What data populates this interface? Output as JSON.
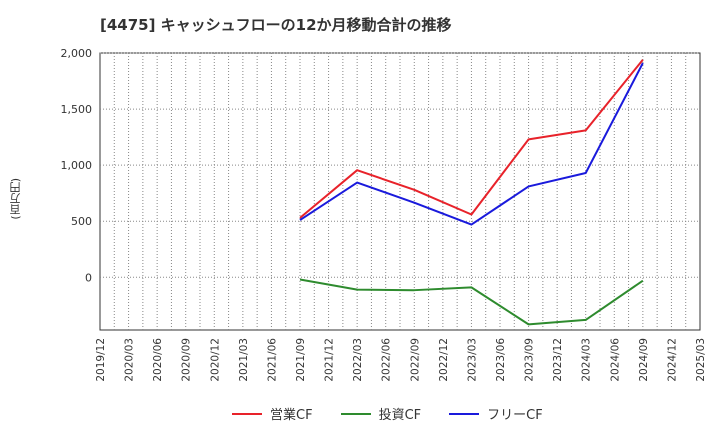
{
  "chart_data": {
    "type": "line",
    "title": "[4475]  キャッシュフローの12か月移動合計の推移",
    "ylabel": "(百万円)",
    "xlabel": "",
    "ylim": [
      -470,
      2000
    ],
    "yticks": [
      0,
      500,
      1000,
      1500,
      2000
    ],
    "ytick_labels": [
      "0",
      "500",
      "1,000",
      "1,500",
      "2,000"
    ],
    "categories": [
      "2019/12",
      "2020/03",
      "2020/06",
      "2020/09",
      "2020/12",
      "2021/03",
      "2021/06",
      "2021/09",
      "2021/12",
      "2022/03",
      "2022/06",
      "2022/09",
      "2022/12",
      "2023/03",
      "2023/06",
      "2023/09",
      "2023/12",
      "2024/03",
      "2024/06",
      "2024/09",
      "2024/12",
      "2025/03"
    ],
    "series": [
      {
        "name": "営業CF",
        "color": "#e8222a",
        "points": [
          [
            "2021/09",
            530
          ],
          [
            "2022/03",
            955
          ],
          [
            "2022/09",
            780
          ],
          [
            "2023/03",
            560
          ],
          [
            "2023/09",
            1230
          ],
          [
            "2024/03",
            1310
          ],
          [
            "2024/09",
            1940
          ]
        ]
      },
      {
        "name": "投資CF",
        "color": "#2e8b2e",
        "points": [
          [
            "2021/09",
            -20
          ],
          [
            "2022/03",
            -110
          ],
          [
            "2022/09",
            -115
          ],
          [
            "2023/03",
            -90
          ],
          [
            "2023/09",
            -420
          ],
          [
            "2024/03",
            -380
          ],
          [
            "2024/09",
            -30
          ]
        ]
      },
      {
        "name": "フリーCF",
        "color": "#1a1adc",
        "points": [
          [
            "2021/09",
            510
          ],
          [
            "2022/03",
            845
          ],
          [
            "2022/09",
            665
          ],
          [
            "2023/03",
            470
          ],
          [
            "2023/09",
            810
          ],
          [
            "2024/03",
            930
          ],
          [
            "2024/09",
            1910
          ]
        ]
      }
    ],
    "legend_position": "bottom",
    "grid": true
  }
}
